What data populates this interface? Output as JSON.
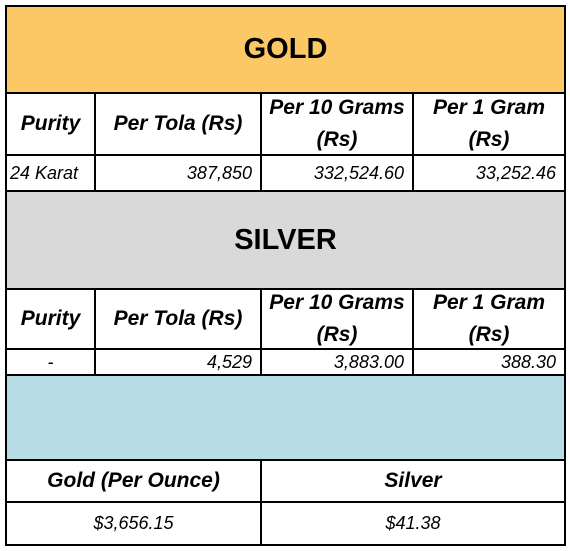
{
  "gold": {
    "title": "GOLD",
    "band_color": "#fcc865",
    "headers": [
      "Purity",
      "Per Tola (Rs)",
      "Per 10 Grams (Rs)",
      "Per 1 Gram (Rs)"
    ],
    "row": {
      "purity": "24 Karat",
      "per_tola": "387,850",
      "per_10_grams": "332,524.60",
      "per_1_gram": "33,252.46"
    }
  },
  "silver": {
    "title": "SILVER",
    "band_color": "#d9d9d9",
    "headers": [
      "Purity",
      "Per Tola (Rs)",
      "Per 10 Grams (Rs)",
      "Per 1 Gram (Rs)"
    ],
    "row": {
      "purity": "-",
      "per_tola": "4,529",
      "per_10_grams": "3,883.00",
      "per_1_gram": "388.30"
    }
  },
  "international": {
    "band_color": "#b8dce5",
    "headers": [
      "Gold (Per Ounce)",
      "Silver"
    ],
    "values": [
      "$3,656.15",
      "$41.38"
    ]
  }
}
